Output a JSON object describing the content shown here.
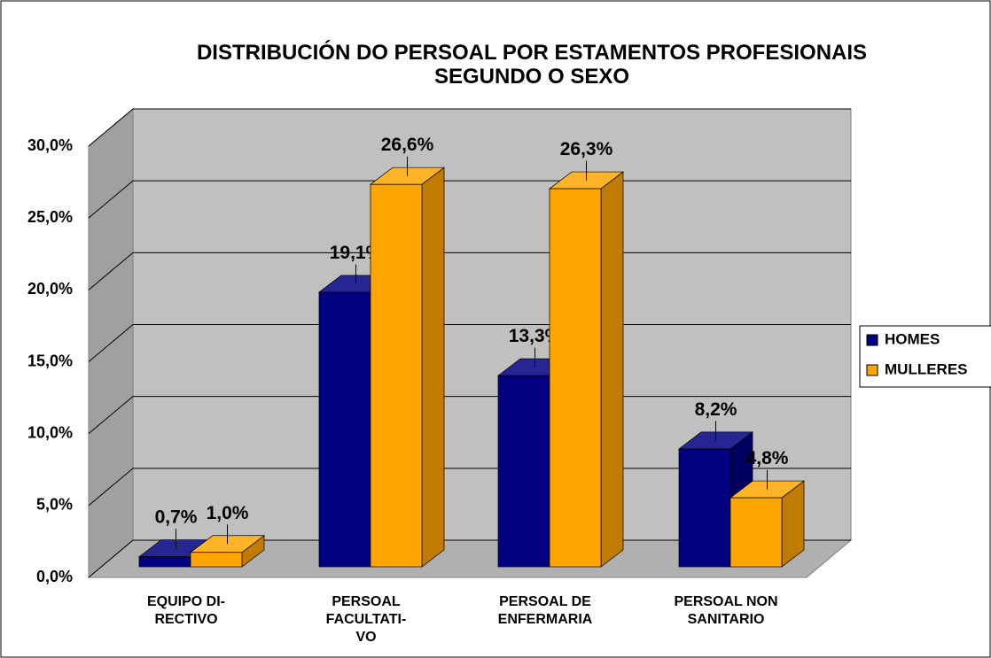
{
  "chart_data": {
    "type": "bar3d",
    "title": "DISTRIBUCIÓN DO PERSOAL POR ESTAMENTOS PROFESIONAIS\nSEGUNDO O SEXO",
    "categories": [
      "EQUIPO DI-\nRECTIVO",
      "PERSOAL\nFACULTATI-\nVO",
      "PERSOAL DE\nENFERMARIA",
      "PERSOAL NON\nSANITARIO"
    ],
    "series": [
      {
        "name": "HOMES",
        "color": "#000080",
        "values": [
          0.7,
          19.1,
          13.3,
          8.2
        ],
        "value_labels": [
          "0,7%",
          "19,1%",
          "13,3%",
          "8,2%"
        ]
      },
      {
        "name": "MULLERES",
        "color": "#ffa500",
        "values": [
          1.0,
          26.6,
          26.3,
          4.8
        ],
        "value_labels": [
          "1,0%",
          "26,6%",
          "26,3%",
          "4,8%"
        ]
      }
    ],
    "ylim": [
      0,
      30
    ],
    "yticks": [
      {
        "value": 0,
        "label": "0,0%"
      },
      {
        "value": 5,
        "label": "5,0%"
      },
      {
        "value": 10,
        "label": "10,0%"
      },
      {
        "value": 15,
        "label": "15,0%"
      },
      {
        "value": 20,
        "label": "20,0%"
      },
      {
        "value": 25,
        "label": "25,0%"
      },
      {
        "value": 30,
        "label": "30,0%"
      }
    ],
    "grid": true,
    "legend": "right"
  }
}
